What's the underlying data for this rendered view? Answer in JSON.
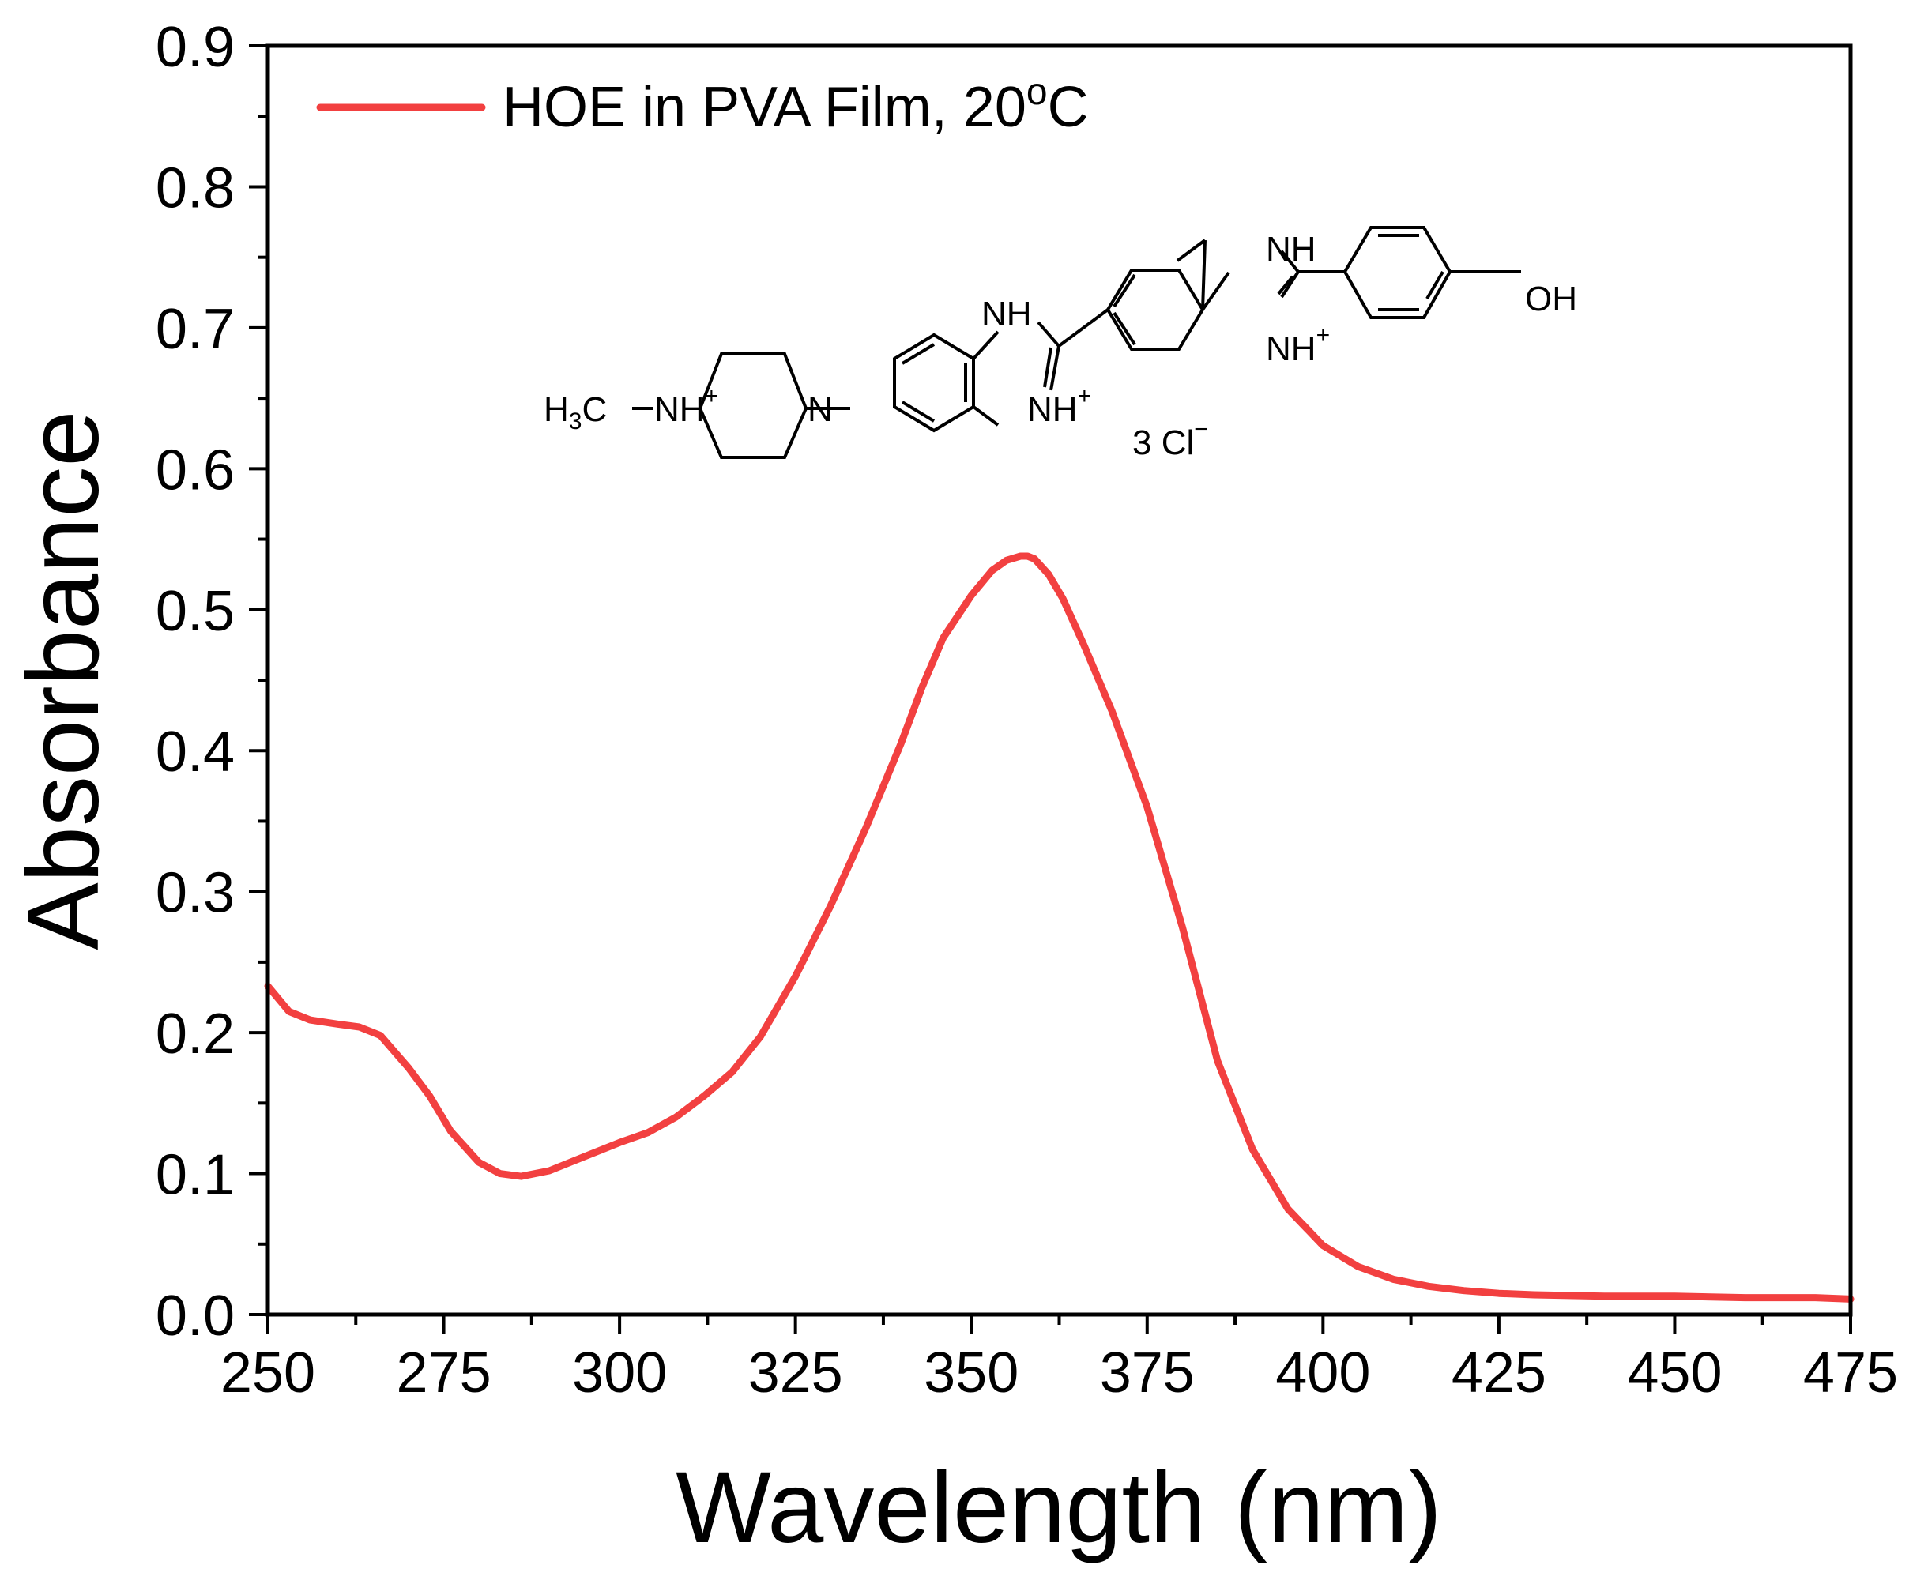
{
  "chart_data": {
    "type": "line",
    "title": "",
    "xlabel": "Wavelength (nm)",
    "ylabel": "Absorbance",
    "xlim": [
      250,
      475
    ],
    "ylim": [
      0.0,
      0.9
    ],
    "x_ticks": [
      "250",
      "275",
      "300",
      "325",
      "350",
      "375",
      "400",
      "425",
      "450",
      "475"
    ],
    "y_ticks": [
      "0.0",
      "0.1",
      "0.2",
      "0.3",
      "0.4",
      "0.5",
      "0.6",
      "0.7",
      "0.8",
      "0.9"
    ],
    "grid": false,
    "legend": {
      "placement": "top-left"
    },
    "series": [
      {
        "name": "HOE in PVA Film, 20",
        "name_sup": "o",
        "name_suffix": "C",
        "color": "#f24040",
        "x": [
          250,
          253,
          256,
          260,
          263,
          266,
          270,
          273,
          276,
          280,
          283,
          286,
          290,
          295,
          300,
          304,
          308,
          312,
          316,
          320,
          325,
          330,
          335,
          340,
          343,
          346,
          350,
          353,
          355,
          357,
          358,
          359,
          361,
          363,
          366,
          370,
          375,
          380,
          385,
          390,
          395,
          400,
          405,
          410,
          415,
          420,
          425,
          430,
          440,
          450,
          460,
          470,
          475
        ],
        "y": [
          0.233,
          0.215,
          0.209,
          0.206,
          0.204,
          0.198,
          0.175,
          0.155,
          0.13,
          0.108,
          0.1,
          0.098,
          0.102,
          0.112,
          0.122,
          0.129,
          0.14,
          0.155,
          0.172,
          0.197,
          0.24,
          0.29,
          0.345,
          0.405,
          0.445,
          0.48,
          0.51,
          0.528,
          0.535,
          0.538,
          0.538,
          0.536,
          0.525,
          0.508,
          0.475,
          0.428,
          0.36,
          0.275,
          0.18,
          0.117,
          0.075,
          0.049,
          0.034,
          0.025,
          0.02,
          0.017,
          0.015,
          0.014,
          0.013,
          0.013,
          0.012,
          0.012,
          0.011
        ]
      }
    ],
    "annotation": {
      "type": "chemical-structure",
      "labels": {
        "h3c": "H",
        "h3c_sub": "3",
        "h3c_tail": "C",
        "nh_pip": "NH",
        "plus": "+",
        "n_pip": "N",
        "nh_top_left": "NH",
        "nh_bottom_left": "NH",
        "nh_top_right": "NH",
        "nh_bottom_right": "NH",
        "oh": "OH",
        "counterion": "3 Cl",
        "minus": "−"
      }
    }
  }
}
